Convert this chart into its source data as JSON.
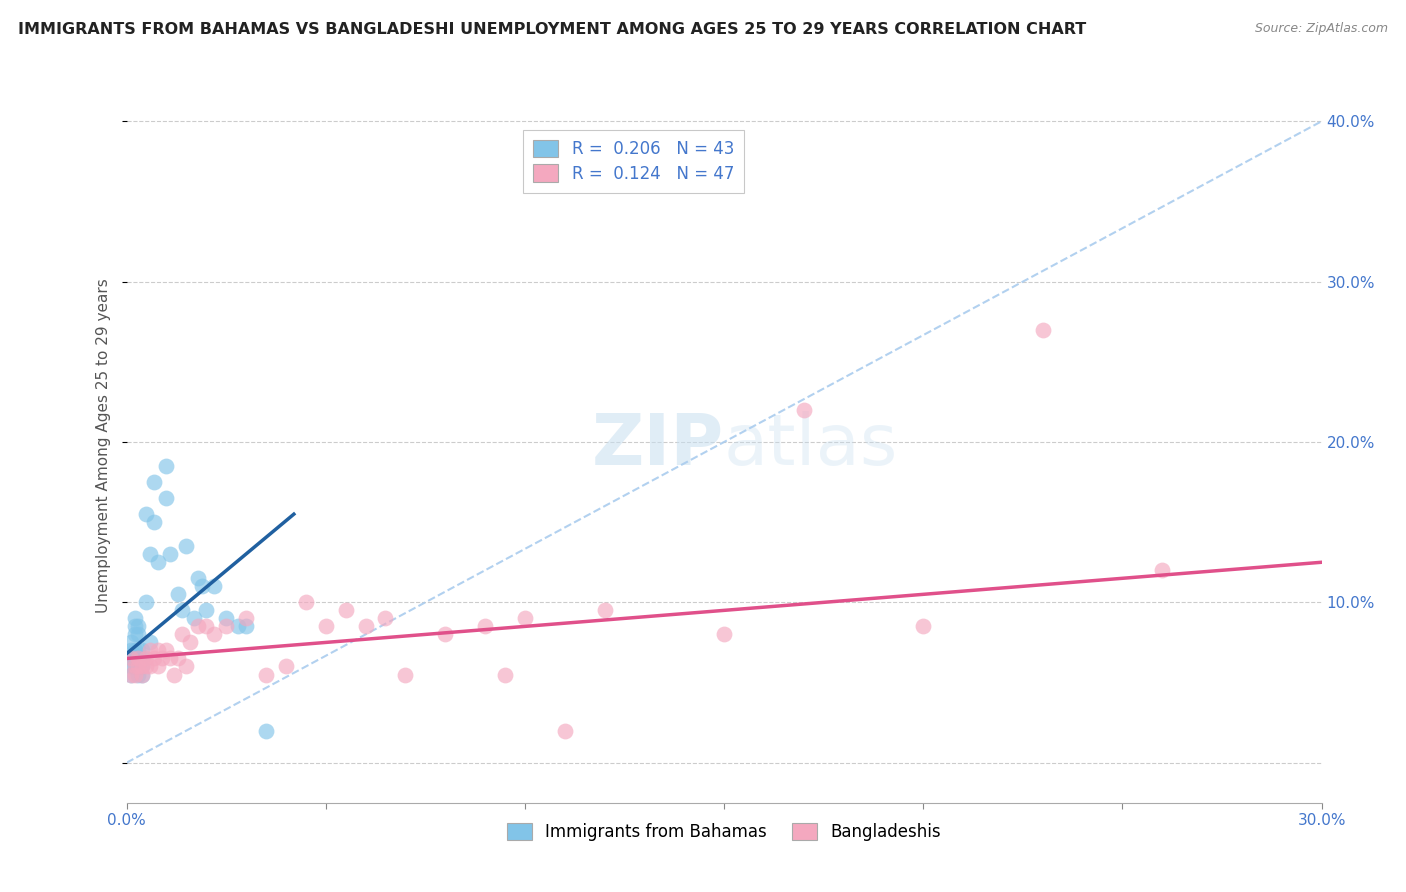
{
  "title": "IMMIGRANTS FROM BAHAMAS VS BANGLADESHI UNEMPLOYMENT AMONG AGES 25 TO 29 YEARS CORRELATION CHART",
  "source": "Source: ZipAtlas.com",
  "ylabel": "Unemployment Among Ages 25 to 29 years",
  "xlim": [
    0.0,
    0.3
  ],
  "ylim": [
    -0.025,
    0.42
  ],
  "xticks": [
    0.0,
    0.05,
    0.1,
    0.15,
    0.2,
    0.25,
    0.3
  ],
  "xticklabels": [
    "0.0%",
    "",
    "",
    "",
    "",
    "",
    "30.0%"
  ],
  "yticks": [
    0.0,
    0.1,
    0.2,
    0.3,
    0.4
  ],
  "yticklabels": [
    "",
    "10.0%",
    "20.0%",
    "30.0%",
    "40.0%"
  ],
  "legend1_label": "Immigrants from Bahamas",
  "legend2_label": "Bangladeshis",
  "R1": 0.206,
  "N1": 43,
  "R2": 0.124,
  "N2": 47,
  "color1": "#82c4e8",
  "color2": "#f4a8bf",
  "line_color1": "#2060a0",
  "line_color2": "#e0508a",
  "dash_color": "#aaccee",
  "background_color": "#ffffff",
  "grid_color": "#cccccc",
  "title_fontsize": 11.5,
  "axis_label_fontsize": 11,
  "tick_fontsize": 11,
  "legend_fontsize": 12,
  "scatter1_x": [
    0.001,
    0.001,
    0.001,
    0.001,
    0.001,
    0.002,
    0.002,
    0.002,
    0.002,
    0.002,
    0.002,
    0.003,
    0.003,
    0.003,
    0.003,
    0.003,
    0.003,
    0.004,
    0.004,
    0.004,
    0.004,
    0.005,
    0.005,
    0.006,
    0.006,
    0.007,
    0.007,
    0.008,
    0.01,
    0.01,
    0.011,
    0.013,
    0.014,
    0.015,
    0.017,
    0.018,
    0.019,
    0.02,
    0.022,
    0.025,
    0.028,
    0.03,
    0.035
  ],
  "scatter1_y": [
    0.055,
    0.06,
    0.065,
    0.07,
    0.075,
    0.06,
    0.065,
    0.07,
    0.08,
    0.085,
    0.09,
    0.055,
    0.06,
    0.065,
    0.07,
    0.08,
    0.085,
    0.055,
    0.06,
    0.065,
    0.07,
    0.1,
    0.155,
    0.075,
    0.13,
    0.15,
    0.175,
    0.125,
    0.165,
    0.185,
    0.13,
    0.105,
    0.095,
    0.135,
    0.09,
    0.115,
    0.11,
    0.095,
    0.11,
    0.09,
    0.085,
    0.085,
    0.02
  ],
  "scatter2_x": [
    0.001,
    0.001,
    0.002,
    0.002,
    0.003,
    0.003,
    0.004,
    0.004,
    0.005,
    0.005,
    0.006,
    0.006,
    0.007,
    0.008,
    0.008,
    0.009,
    0.01,
    0.011,
    0.012,
    0.013,
    0.014,
    0.015,
    0.016,
    0.018,
    0.02,
    0.022,
    0.025,
    0.03,
    0.035,
    0.04,
    0.045,
    0.05,
    0.055,
    0.06,
    0.065,
    0.07,
    0.08,
    0.09,
    0.095,
    0.1,
    0.11,
    0.12,
    0.15,
    0.17,
    0.2,
    0.23,
    0.26
  ],
  "scatter2_y": [
    0.055,
    0.065,
    0.055,
    0.06,
    0.06,
    0.065,
    0.055,
    0.06,
    0.06,
    0.065,
    0.06,
    0.07,
    0.065,
    0.06,
    0.07,
    0.065,
    0.07,
    0.065,
    0.055,
    0.065,
    0.08,
    0.06,
    0.075,
    0.085,
    0.085,
    0.08,
    0.085,
    0.09,
    0.055,
    0.06,
    0.1,
    0.085,
    0.095,
    0.085,
    0.09,
    0.055,
    0.08,
    0.085,
    0.055,
    0.09,
    0.02,
    0.095,
    0.08,
    0.22,
    0.085,
    0.27,
    0.12
  ],
  "blue_line_x0": 0.0,
  "blue_line_x1": 0.042,
  "blue_line_y0": 0.068,
  "blue_line_y1": 0.155,
  "pink_line_x0": 0.0,
  "pink_line_x1": 0.3,
  "pink_line_y0": 0.065,
  "pink_line_y1": 0.125,
  "dash_line_x0": 0.0,
  "dash_line_x1": 0.3,
  "dash_line_y0": 0.0,
  "dash_line_y1": 0.4
}
